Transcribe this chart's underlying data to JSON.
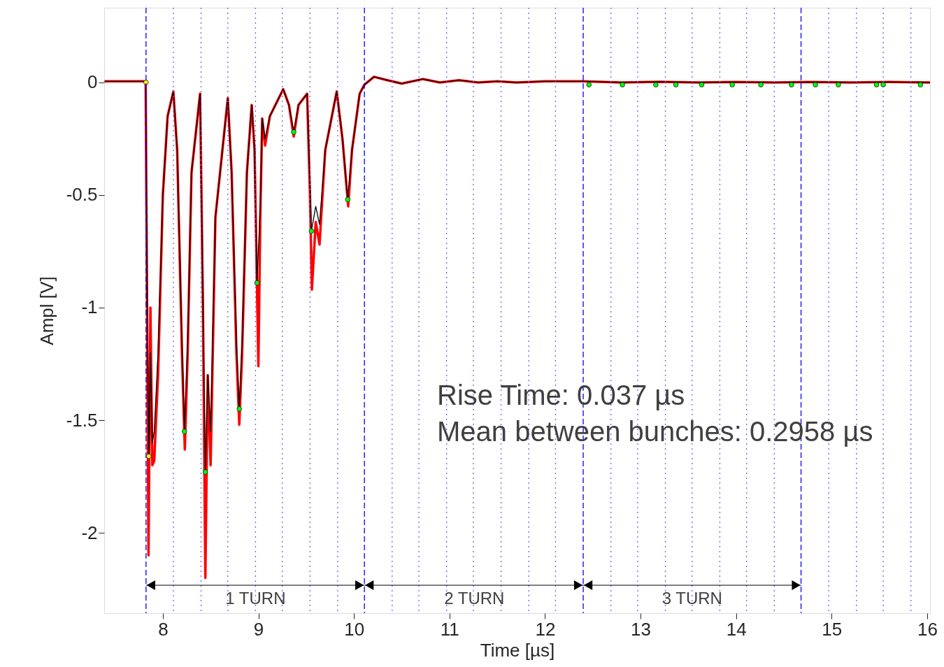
{
  "chart_data": {
    "type": "line",
    "xlabel": "Time [µs]",
    "ylabel": "Ampl [V]",
    "xlim": [
      7.386,
      16.03
    ],
    "ylim": [
      -2.357,
      0.332
    ],
    "xticks": [
      8,
      9,
      10,
      11,
      12,
      13,
      14,
      15,
      16
    ],
    "yticks": [
      -2,
      -1.5,
      -1,
      -0.5,
      0
    ],
    "line_style": "solid",
    "series": [
      {
        "color": "#ff0000",
        "x": [
          7.39,
          7.6,
          7.82,
          7.835,
          7.85,
          7.87,
          7.89,
          7.91,
          7.95,
          8.0,
          8.05,
          8.11,
          8.15,
          8.2,
          8.23,
          8.26,
          8.3,
          8.39,
          8.42,
          8.445,
          8.47,
          8.5,
          8.55,
          8.68,
          8.72,
          8.77,
          8.8,
          8.83,
          8.88,
          8.93,
          8.96,
          9.0,
          9.02,
          9.04,
          9.07,
          9.12,
          9.26,
          9.32,
          9.37,
          9.42,
          9.51,
          9.54,
          9.56,
          9.6,
          9.64,
          9.7,
          9.82,
          9.88,
          9.94,
          9.98,
          10.06,
          10.11,
          10.21,
          10.35,
          10.5,
          10.72,
          10.9,
          11.1,
          11.3,
          11.5,
          11.7,
          12.0,
          12.4,
          12.8,
          13.2,
          13.6,
          14.0,
          14.4,
          14.8,
          15.2,
          15.6,
          16.03
        ],
        "values": [
          0.005,
          0.005,
          0.005,
          -1.0,
          -2.1,
          -1.0,
          -1.7,
          -1.68,
          -1.3,
          -0.5,
          -0.15,
          -0.04,
          -0.3,
          -1.2,
          -1.63,
          -1.2,
          -0.4,
          -0.05,
          -1.0,
          -2.2,
          -1.3,
          -1.7,
          -0.6,
          -0.07,
          -0.4,
          -1.2,
          -1.52,
          -1.2,
          -0.4,
          -0.1,
          -0.3,
          -1.26,
          -0.6,
          -0.16,
          -0.28,
          -0.15,
          -0.03,
          -0.1,
          -0.24,
          -0.1,
          -0.05,
          -0.5,
          -0.92,
          -0.62,
          -0.72,
          -0.3,
          -0.04,
          -0.25,
          -0.55,
          -0.3,
          -0.05,
          -0.01,
          0.025,
          0.01,
          -0.005,
          0.015,
          0.0,
          0.01,
          0.0,
          0.005,
          0.0,
          0.005,
          0.005,
          0.0,
          0.003,
          0.0,
          0.002,
          0.0,
          0.002,
          0.0,
          0.002,
          0.0
        ]
      },
      {
        "color": "#000000",
        "x": [
          7.39,
          7.6,
          7.82,
          7.835,
          7.853,
          7.87,
          7.89,
          7.91,
          7.95,
          8.0,
          8.05,
          8.11,
          8.15,
          8.2,
          8.226,
          8.26,
          8.3,
          8.39,
          8.42,
          8.445,
          8.47,
          8.5,
          8.55,
          8.68,
          8.72,
          8.77,
          8.8,
          8.83,
          8.88,
          8.93,
          8.96,
          8.985,
          9.02,
          9.04,
          9.07,
          9.12,
          9.26,
          9.32,
          9.37,
          9.42,
          9.51,
          9.54,
          9.555,
          9.6,
          9.64,
          9.7,
          9.82,
          9.88,
          9.935,
          9.98,
          10.06,
          10.11,
          10.21,
          10.35,
          10.5,
          10.72,
          10.9,
          11.1,
          11.3,
          11.5,
          11.7,
          12.0,
          12.4,
          12.8,
          13.2,
          13.6,
          14.0,
          14.4,
          14.8,
          15.2,
          15.6,
          16.03
        ],
        "values": [
          0.005,
          0.005,
          0.005,
          -0.9,
          -1.66,
          -1.2,
          -1.6,
          -1.55,
          -1.2,
          -0.5,
          -0.15,
          -0.04,
          -0.3,
          -1.15,
          -1.55,
          -1.15,
          -0.4,
          -0.05,
          -1.0,
          -1.73,
          -1.3,
          -1.55,
          -0.6,
          -0.07,
          -0.4,
          -1.15,
          -1.45,
          -1.15,
          -0.4,
          -0.1,
          -0.3,
          -0.89,
          -0.55,
          -0.16,
          -0.25,
          -0.15,
          -0.03,
          -0.1,
          -0.22,
          -0.1,
          -0.05,
          -0.45,
          -0.66,
          -0.55,
          -0.63,
          -0.3,
          -0.04,
          -0.25,
          -0.52,
          -0.3,
          -0.05,
          -0.01,
          0.025,
          0.01,
          -0.005,
          0.015,
          0.0,
          0.01,
          0.0,
          0.005,
          0.0,
          0.005,
          0.005,
          0.0,
          0.003,
          0.0,
          0.002,
          0.0,
          0.002,
          0.0,
          0.002,
          0.0
        ]
      },
      {
        "type": "scatter",
        "color": "#00ff00",
        "marker": "circle",
        "x": [
          8.226,
          8.445,
          8.8,
          8.985,
          9.37,
          9.555,
          9.935,
          12.46,
          12.81,
          13.16,
          13.37,
          13.64,
          13.96,
          14.26,
          14.58,
          14.83,
          15.07,
          15.47,
          15.54,
          15.93
        ],
        "values": [
          -1.55,
          -1.73,
          -1.45,
          -0.89,
          -0.22,
          -0.66,
          -0.52,
          -0.01,
          -0.01,
          -0.01,
          -0.01,
          -0.01,
          -0.01,
          -0.01,
          -0.01,
          -0.01,
          -0.01,
          -0.01,
          -0.01,
          -0.01
        ]
      },
      {
        "type": "scatter",
        "color": "#ffff00",
        "marker": "circle",
        "x": [
          7.824,
          7.853
        ],
        "values": [
          0.0,
          -1.66
        ]
      }
    ],
    "ref_lines": [
      {
        "axis": "x",
        "value": 7.824,
        "color": "#0000ff",
        "line_style": "dashed"
      },
      {
        "axis": "x",
        "value": 10.11,
        "color": "#0000ff",
        "line_style": "dashed"
      },
      {
        "axis": "x",
        "value": 12.4,
        "color": "#0000ff",
        "line_style": "dashed"
      },
      {
        "axis": "x",
        "value": 14.68,
        "color": "#0000ff",
        "line_style": "dashed"
      },
      {
        "axis": "x",
        "value": 8.11,
        "color": "#6666ff",
        "line_style": "dotted"
      },
      {
        "axis": "x",
        "value": 8.4,
        "color": "#6666ff",
        "line_style": "dotted"
      },
      {
        "axis": "x",
        "value": 8.68,
        "color": "#6666ff",
        "line_style": "dotted"
      },
      {
        "axis": "x",
        "value": 8.97,
        "color": "#6666ff",
        "line_style": "dotted"
      },
      {
        "axis": "x",
        "value": 9.25,
        "color": "#6666ff",
        "line_style": "dotted"
      },
      {
        "axis": "x",
        "value": 9.54,
        "color": "#6666ff",
        "line_style": "dotted"
      },
      {
        "axis": "x",
        "value": 9.83,
        "color": "#6666ff",
        "line_style": "dotted"
      },
      {
        "axis": "x",
        "value": 10.4,
        "color": "#6666ff",
        "line_style": "dotted"
      },
      {
        "axis": "x",
        "value": 10.68,
        "color": "#6666ff",
        "line_style": "dotted"
      },
      {
        "axis": "x",
        "value": 10.97,
        "color": "#6666ff",
        "line_style": "dotted"
      },
      {
        "axis": "x",
        "value": 11.25,
        "color": "#6666ff",
        "line_style": "dotted"
      },
      {
        "axis": "x",
        "value": 11.54,
        "color": "#6666ff",
        "line_style": "dotted"
      },
      {
        "axis": "x",
        "value": 11.83,
        "color": "#6666ff",
        "line_style": "dotted"
      },
      {
        "axis": "x",
        "value": 12.11,
        "color": "#6666ff",
        "line_style": "dotted"
      },
      {
        "axis": "x",
        "value": 12.69,
        "color": "#6666ff",
        "line_style": "dotted"
      },
      {
        "axis": "x",
        "value": 12.97,
        "color": "#6666ff",
        "line_style": "dotted"
      },
      {
        "axis": "x",
        "value": 13.26,
        "color": "#6666ff",
        "line_style": "dotted"
      },
      {
        "axis": "x",
        "value": 13.54,
        "color": "#6666ff",
        "line_style": "dotted"
      },
      {
        "axis": "x",
        "value": 13.83,
        "color": "#6666ff",
        "line_style": "dotted"
      },
      {
        "axis": "x",
        "value": 14.11,
        "color": "#6666ff",
        "line_style": "dotted"
      },
      {
        "axis": "x",
        "value": 14.4,
        "color": "#6666ff",
        "line_style": "dotted"
      },
      {
        "axis": "x",
        "value": 14.97,
        "color": "#6666ff",
        "line_style": "dotted"
      },
      {
        "axis": "x",
        "value": 15.26,
        "color": "#6666ff",
        "line_style": "dotted"
      },
      {
        "axis": "x",
        "value": 15.54,
        "color": "#6666ff",
        "line_style": "dotted"
      },
      {
        "axis": "x",
        "value": 15.83,
        "color": "#6666ff",
        "line_style": "dotted"
      }
    ],
    "annotations": [
      "Rise Time: 0.037 µs",
      "Mean between bunches: 0.2958 µs",
      {
        "text": "1 TURN",
        "x": 8.97,
        "y": -2.295
      },
      {
        "text": "2 TURN",
        "x": 11.26,
        "y": -2.295
      },
      {
        "text": "3 TURN",
        "x": 13.54,
        "y": -2.295
      }
    ]
  }
}
